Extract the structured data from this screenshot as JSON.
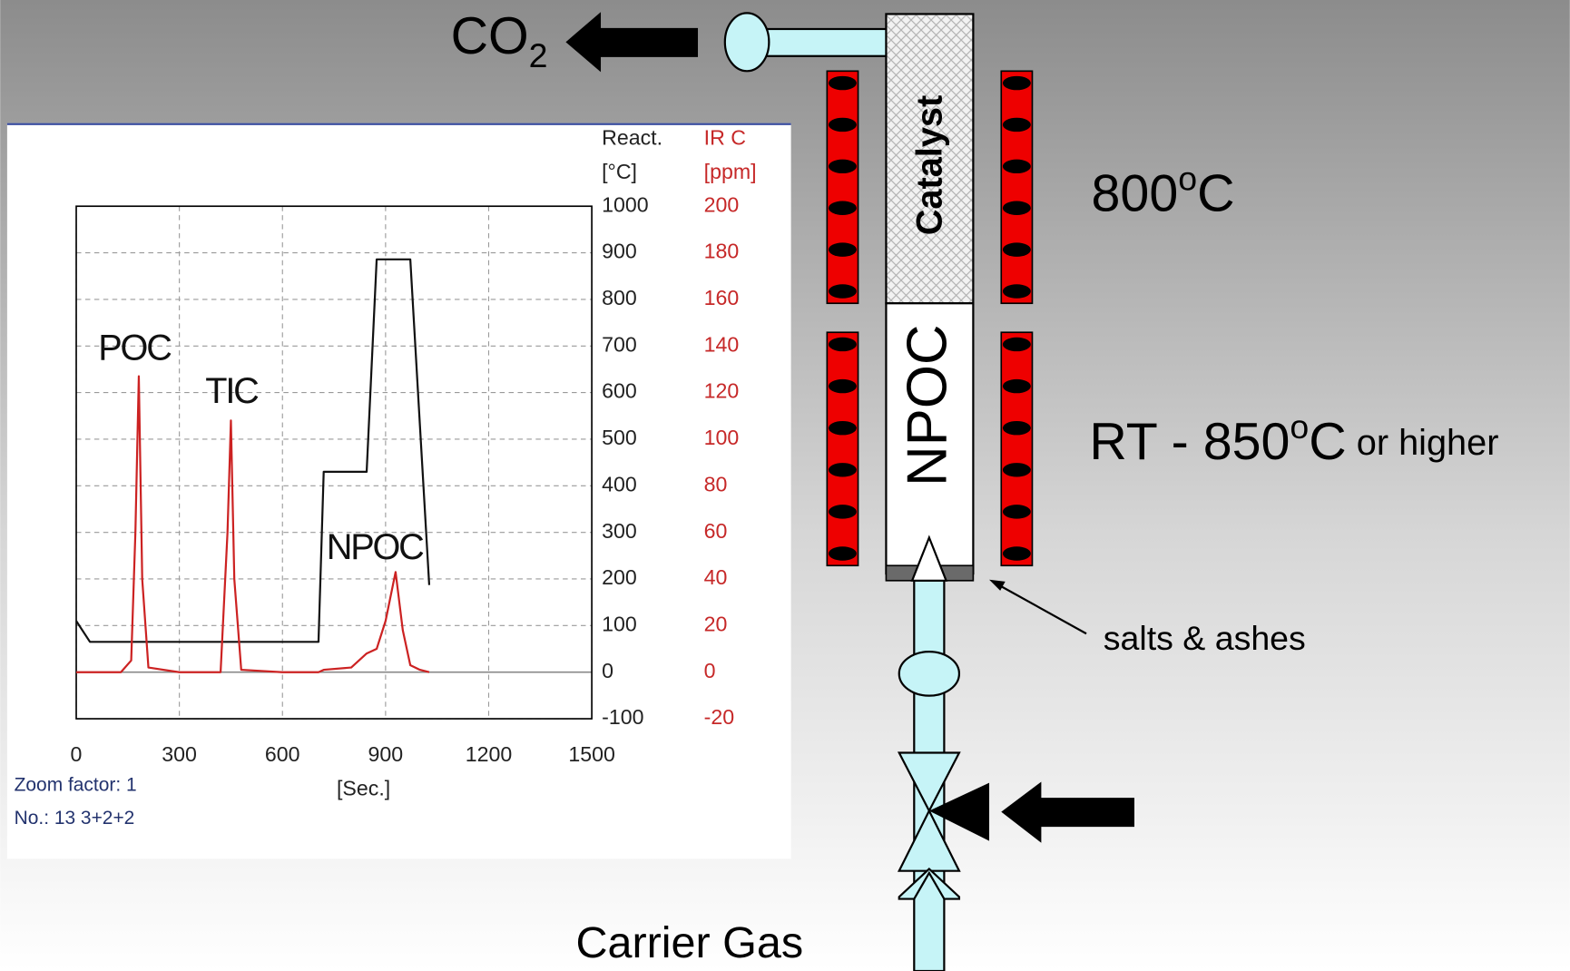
{
  "chart_data": {
    "type": "line",
    "xlabel": "[Sec.]",
    "x": [
      0,
      40,
      130,
      160,
      172,
      182,
      192,
      210,
      300,
      420,
      440,
      450,
      460,
      480,
      600,
      705,
      720,
      800,
      845,
      874,
      900,
      929,
      950,
      972,
      1000,
      1027
    ],
    "series": [
      {
        "name": "React.",
        "unit": "[°C]",
        "color": "#111111",
        "values": [
          110,
          65,
          65,
          65,
          65,
          65,
          65,
          65,
          65,
          65,
          65,
          65,
          65,
          65,
          65,
          65,
          430,
          430,
          430,
          886,
          886,
          886,
          886,
          886,
          530,
          187
        ]
      },
      {
        "name": "IR C",
        "unit": "[ppm]",
        "color": "#cc2222",
        "axis": "y2",
        "values": [
          0,
          0,
          0,
          5,
          60,
          127,
          40,
          2,
          0,
          0,
          60,
          108,
          40,
          1,
          0,
          0,
          1,
          2,
          8,
          10,
          22,
          43,
          18,
          3,
          1,
          0
        ]
      }
    ],
    "xlim": [
      0,
      1500
    ],
    "xticks": [
      0,
      300,
      600,
      900,
      1200,
      1500
    ],
    "ylim": [
      -100,
      1000
    ],
    "yticks": [
      -100,
      0,
      100,
      200,
      300,
      400,
      500,
      600,
      700,
      800,
      900,
      1000
    ],
    "y2lim": [
      -20,
      200
    ],
    "y2ticks": [
      -20,
      0,
      20,
      40,
      60,
      80,
      100,
      120,
      140,
      160,
      180,
      200
    ],
    "grid": true,
    "annotations": [
      "POC",
      "TIC",
      "NPOC"
    ],
    "notes": [
      "Zoom factor:  1",
      "No.:  13 3+2+2"
    ]
  },
  "diagram": {
    "outlet": [
      "CO",
      "2"
    ],
    "catalyst": "Catalyst",
    "sample": "NPOC",
    "catalyst_temp": [
      "800",
      "o",
      "C"
    ],
    "sample_temp": [
      "RT - 850",
      "o",
      "C",
      " or higher"
    ],
    "residue": "salts & ashes",
    "inlet": "Carrier Gas"
  }
}
